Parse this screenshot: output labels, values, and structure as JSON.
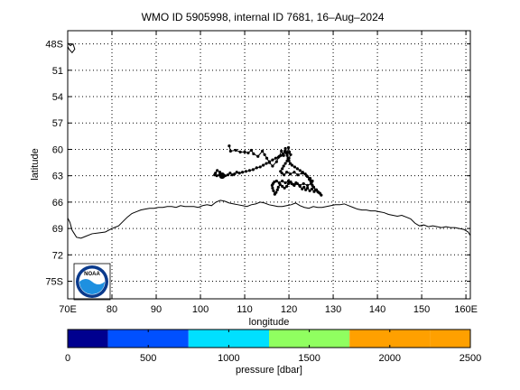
{
  "chart_data": {
    "type": "line",
    "title": "WMO ID 5905998, internal ID 7681, 16–Aug–2024",
    "xlabel": "longitude",
    "ylabel": "latitude",
    "xlim": [
      70,
      161
    ],
    "ylim": [
      -77,
      -46.5
    ],
    "grid": true,
    "x_ticks": [
      70,
      80,
      90,
      100,
      110,
      120,
      130,
      140,
      150,
      160
    ],
    "x_tick_labels": [
      "70E",
      "80",
      "90",
      "100",
      "110",
      "120",
      "130",
      "140",
      "150",
      "160E"
    ],
    "y_ticks": [
      -48,
      -51,
      -54,
      -57,
      -60,
      -63,
      -66,
      -69,
      -72,
      -75
    ],
    "y_tick_labels": [
      "48S",
      "51",
      "54",
      "57",
      "60",
      "63",
      "66",
      "69",
      "72",
      "75S"
    ],
    "trajectory": {
      "lon": [
        106.5,
        106.8,
        108.0,
        109.0,
        110.0,
        110.8,
        111.5,
        112.0,
        113.0,
        114.0,
        114.5,
        115.0,
        115.6,
        116.3,
        117.2,
        117.8,
        118.3,
        118.8,
        119.2,
        119.6,
        119.9,
        120.1,
        120.4,
        120.0,
        119.6,
        119.2,
        118.8,
        118.5,
        118.1,
        118.4,
        118.9,
        119.5,
        120.3,
        121.2,
        122.0,
        123.0,
        124.0,
        124.8,
        125.3,
        125.0,
        124.2,
        123.3,
        122.4,
        121.6,
        121.0,
        120.4,
        119.9,
        119.5,
        119.0,
        118.5,
        118.0,
        117.6,
        117.4,
        117.1,
        116.8,
        116.5,
        116.3,
        116.2,
        116.4,
        116.7,
        117.2,
        117.8,
        118.5,
        119.2,
        119.9,
        120.6,
        121.2,
        121.9,
        122.5,
        123.0,
        123.4,
        123.8,
        124.2,
        124.7,
        125.2,
        125.7,
        126.2,
        126.7,
        127.3,
        127.0,
        126.5,
        126.0,
        125.6,
        125.3,
        125.1,
        124.9,
        124.6,
        124.2,
        123.7,
        123.1,
        122.5,
        121.9,
        121.3,
        120.7,
        120.3,
        120.0,
        119.8,
        119.6,
        119.4,
        119.1,
        118.7,
        118.2,
        117.6,
        117.0,
        116.3,
        115.6,
        114.9,
        114.2,
        113.5,
        112.7,
        111.9,
        111.1,
        110.3,
        109.5,
        108.8,
        108.2,
        107.7,
        107.2,
        106.7,
        106.2,
        105.6,
        105.0,
        104.4,
        103.8,
        103.4,
        103.2,
        103.7,
        104.3,
        104.9
      ],
      "lat": [
        -59.6,
        -60.2,
        -60.1,
        -60.3,
        -60.3,
        -60.4,
        -60.1,
        -60.5,
        -60.8,
        -60.2,
        -60.6,
        -61.0,
        -61.5,
        -61.9,
        -61.4,
        -60.8,
        -60.2,
        -60.7,
        -59.9,
        -60.4,
        -59.8,
        -60.3,
        -60.6,
        -61.0,
        -61.3,
        -61.6,
        -61.9,
        -62.2,
        -62.5,
        -62.7,
        -62.9,
        -62.6,
        -62.8,
        -62.6,
        -62.9,
        -62.7,
        -63.0,
        -63.3,
        -63.6,
        -63.9,
        -64.1,
        -63.9,
        -64.1,
        -63.8,
        -64.0,
        -63.7,
        -63.9,
        -64.2,
        -64.4,
        -64.2,
        -64.0,
        -64.3,
        -64.6,
        -64.9,
        -65.1,
        -64.7,
        -64.4,
        -64.1,
        -63.9,
        -63.7,
        -63.6,
        -63.8,
        -63.6,
        -63.8,
        -63.6,
        -63.9,
        -64.1,
        -63.9,
        -64.2,
        -64.5,
        -64.3,
        -64.6,
        -64.4,
        -64.7,
        -64.5,
        -64.8,
        -64.6,
        -64.9,
        -65.2,
        -65.0,
        -64.8,
        -64.6,
        -64.3,
        -64.1,
        -63.8,
        -63.6,
        -63.4,
        -63.1,
        -62.8,
        -62.6,
        -62.4,
        -62.2,
        -62.0,
        -61.8,
        -61.6,
        -61.3,
        -61.0,
        -60.7,
        -60.4,
        -60.2,
        -60.5,
        -60.7,
        -60.9,
        -61.0,
        -61.2,
        -61.4,
        -61.6,
        -61.8,
        -62.0,
        -62.1,
        -62.3,
        -62.4,
        -62.5,
        -62.6,
        -62.7,
        -62.6,
        -62.8,
        -62.9,
        -62.7,
        -62.9,
        -63.0,
        -62.8,
        -62.6,
        -62.4,
        -62.7,
        -62.9,
        -63.0,
        -62.9,
        -63.0
      ],
      "start": {
        "lon": 104.9,
        "lat": -63.0
      }
    },
    "coastline": {
      "lon": [
        70.0,
        70.5,
        71.0,
        71.5,
        72.0,
        73.0,
        74.0,
        75.5,
        77.0,
        78.5,
        80.0,
        81.5,
        82.5,
        83.5,
        84.5,
        85.5,
        86.5,
        87.5,
        88.5,
        89.5,
        90.5,
        91.5,
        92.5,
        93.5,
        94.5,
        95.5,
        96.5,
        97.5,
        98.5,
        99.5,
        100.5,
        101.5,
        102.5,
        103.5,
        104.5,
        105.5,
        106.5,
        107.5,
        108.5,
        109.5,
        110.5,
        111.5,
        112.5,
        113.5,
        114.5,
        115.5,
        116.5,
        117.5,
        118.5,
        119.5,
        120.5,
        121.5,
        122.5,
        123.5,
        124.5,
        125.5,
        126.5,
        127.5,
        128.5,
        129.5,
        130.5,
        131.5,
        132.5,
        133.5,
        134.5,
        135.5,
        136.5,
        137.5,
        138.5,
        139.5,
        140.5,
        141.5,
        142.5,
        143.5,
        144.5,
        145.5,
        146.5,
        147.5,
        148.5,
        149.5,
        150.5,
        151.5,
        152.5,
        153.5,
        154.5,
        155.5,
        156.5,
        157.5,
        158.5,
        159.5,
        160.5,
        161.0
      ],
      "lat": [
        -67.8,
        -68.3,
        -69.2,
        -69.6,
        -70.0,
        -70.1,
        -69.9,
        -69.6,
        -69.5,
        -69.4,
        -69.0,
        -68.7,
        -68.2,
        -67.7,
        -67.3,
        -67.1,
        -66.9,
        -66.8,
        -66.7,
        -66.7,
        -66.6,
        -66.6,
        -66.5,
        -66.5,
        -66.6,
        -66.4,
        -66.5,
        -66.5,
        -66.5,
        -66.6,
        -66.4,
        -66.3,
        -66.4,
        -66.0,
        -65.8,
        -65.9,
        -66.1,
        -66.2,
        -66.3,
        -66.4,
        -66.5,
        -66.3,
        -66.2,
        -66.0,
        -66.1,
        -66.3,
        -66.4,
        -66.5,
        -66.5,
        -66.4,
        -66.3,
        -66.1,
        -66.4,
        -66.6,
        -66.7,
        -66.5,
        -66.6,
        -66.6,
        -66.5,
        -66.4,
        -66.3,
        -66.3,
        -66.2,
        -66.4,
        -66.6,
        -66.8,
        -66.9,
        -66.9,
        -67.0,
        -67.0,
        -67.1,
        -67.2,
        -67.4,
        -67.5,
        -67.6,
        -67.5,
        -67.7,
        -67.9,
        -68.4,
        -68.7,
        -68.6,
        -68.8,
        -68.7,
        -68.8,
        -68.9,
        -68.8,
        -68.9,
        -68.9,
        -69.0,
        -69.1,
        -69.4,
        -69.8
      ],
      "island_lon": [
        70.0,
        70.6,
        71.2,
        71.6,
        71.0,
        70.3,
        70.0
      ],
      "island_lat": [
        -47.9,
        -48.2,
        -48.0,
        -48.6,
        -49.0,
        -48.6,
        -48.3
      ]
    },
    "colorbar": {
      "label": "pressure [dbar]",
      "ticks": [
        0,
        500,
        1000,
        1500,
        2000,
        2500
      ],
      "segments": [
        {
          "from": 0,
          "to": 250,
          "color": "#00008f"
        },
        {
          "from": 250,
          "to": 750,
          "color": "#0050ff"
        },
        {
          "from": 750,
          "to": 1250,
          "color": "#00e0ff"
        },
        {
          "from": 1250,
          "to": 1750,
          "color": "#90ff60"
        },
        {
          "from": 1750,
          "to": 2250,
          "color": "#ffa000"
        },
        {
          "from": 2250,
          "to": 2500,
          "color": "#ffa000"
        }
      ]
    },
    "logo": {
      "name": "noaa-logo-icon",
      "text": "NOAA"
    }
  }
}
